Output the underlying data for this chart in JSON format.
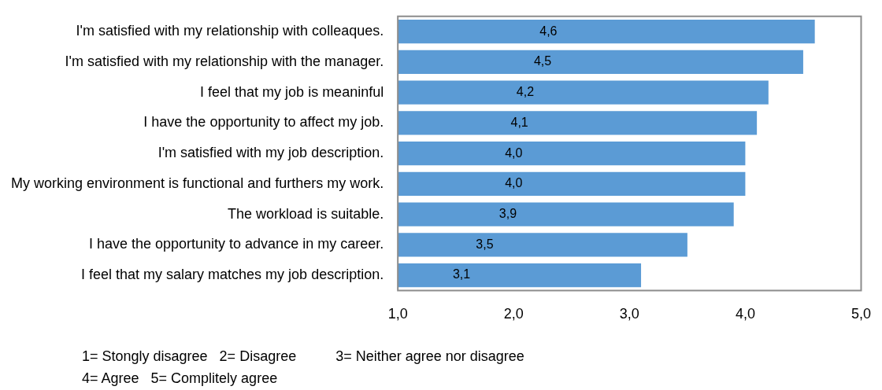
{
  "chart_data": {
    "type": "bar",
    "orientation": "horizontal",
    "categories": [
      "I'm satisfied with my relationship with colleaques.",
      "I'm satisfied with my relationship with the manager.",
      "I feel that my job is meaninful",
      "I have the opportunity to affect my job.",
      "I'm satisfied with my job description.",
      "My working environment is functional and furthers my work.",
      "The workload is suitable.",
      "I have the opportunity to advance in my career.",
      "I feel that my salary matches my job description."
    ],
    "values": [
      4.6,
      4.5,
      4.2,
      4.1,
      4.0,
      4.0,
      3.9,
      3.5,
      3.1
    ],
    "value_labels": [
      "4,6",
      "4,5",
      "4,2",
      "4,1",
      "4,0",
      "4,0",
      "3,9",
      "3,5",
      "3,1"
    ],
    "color": "#5b9bd5",
    "xlim": [
      1,
      5
    ],
    "xticks": [
      {
        "value": 1,
        "label": "1,0"
      },
      {
        "value": 2,
        "label": "2,0"
      },
      {
        "value": 3,
        "label": "3,0"
      },
      {
        "value": 4,
        "label": "4,0"
      },
      {
        "value": 5,
        "label": "5,0"
      }
    ],
    "grid": false,
    "legend": false,
    "annotations": [
      "1= Stongly disagree   2= Disagree          3= Neither agree nor disagree",
      "4= Agree   5= Complitely agree"
    ]
  }
}
